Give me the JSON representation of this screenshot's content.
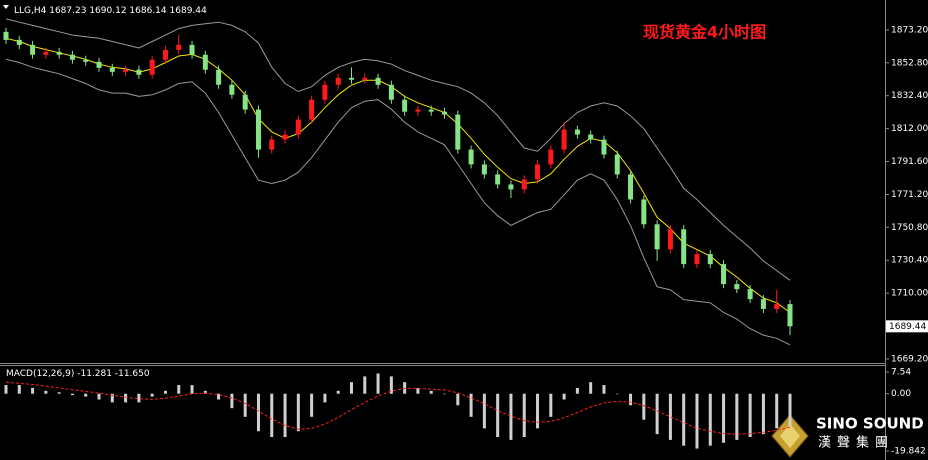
{
  "chart_data": [
    {
      "type": "candlestick",
      "symbol": "LLG,H4",
      "quote": [
        1687.23,
        1690.12,
        1686.14,
        1689.44
      ],
      "title": "现货黄金4小时图",
      "ylim": [
        1666.7,
        1890.5
      ],
      "yticks": [
        {
          "value": 1873.2,
          "label": "1873.20"
        },
        {
          "value": 1852.8,
          "label": "1852.80"
        },
        {
          "value": 1832.4,
          "label": "1832.40"
        },
        {
          "value": 1812,
          "label": "1812.00"
        },
        {
          "value": 1791.6,
          "label": "1791.60"
        },
        {
          "value": 1771.2,
          "label": "1771.20"
        },
        {
          "value": 1750.8,
          "label": "1750.80"
        },
        {
          "value": 1730.4,
          "label": "1730.40"
        },
        {
          "value": 1710,
          "label": "1710.00"
        },
        {
          "value": 1669.2,
          "label": "1669.20"
        }
      ],
      "current_price": 1689.44,
      "up_color": "#ff1a1a",
      "down_color": "#86e386",
      "open": [
        1872.0,
        1867.0,
        1863.9,
        1857.8,
        1859.6,
        1857.8,
        1854.7,
        1853.4,
        1849.7,
        1847.2,
        1848.5,
        1845.4,
        1854.7,
        1860.8,
        1863.9,
        1857.8,
        1848.5,
        1839.2,
        1833.0,
        1823.8,
        1799.0,
        1805.2,
        1808.3,
        1817.6,
        1829.9,
        1839.2,
        1843.5,
        1842.3,
        1843.5,
        1839.2,
        1829.9,
        1822.5,
        1823.8,
        1822.5,
        1820.7,
        1799.0,
        1789.8,
        1783.6,
        1777.4,
        1774.3,
        1780.5,
        1789.8,
        1799.0,
        1811.4,
        1808.3,
        1805.2,
        1795.9,
        1783.6,
        1768.1,
        1752.7,
        1737.2,
        1749.6,
        1728.0,
        1734.2,
        1728.0,
        1715.6,
        1712.5,
        1706.3,
        1700.2,
        1703.2
      ],
      "high": [
        1874.5,
        1869.5,
        1866.4,
        1862.1,
        1862.1,
        1860.3,
        1857.2,
        1855.9,
        1852.2,
        1851.0,
        1851.0,
        1857.2,
        1863.3,
        1870.0,
        1866.4,
        1860.3,
        1851.0,
        1841.7,
        1835.5,
        1826.3,
        1807.7,
        1810.8,
        1820.1,
        1832.4,
        1841.7,
        1846.0,
        1850.0,
        1846.0,
        1846.0,
        1841.7,
        1832.4,
        1826.3,
        1826.3,
        1825.0,
        1823.2,
        1801.5,
        1792.3,
        1786.1,
        1779.9,
        1783.0,
        1792.3,
        1801.5,
        1816.0,
        1813.9,
        1810.8,
        1807.7,
        1798.4,
        1786.1,
        1770.6,
        1755.2,
        1752.1,
        1752.1,
        1736.7,
        1736.7,
        1730.5,
        1718.1,
        1715.0,
        1708.8,
        1712.0,
        1705.7
      ],
      "low": [
        1864.5,
        1861.4,
        1855.3,
        1855.3,
        1855.3,
        1852.2,
        1850.9,
        1847.2,
        1844.7,
        1844.7,
        1842.9,
        1842.9,
        1852.2,
        1858.3,
        1855.3,
        1846.0,
        1836.7,
        1830.5,
        1821.3,
        1794.0,
        1796.5,
        1802.7,
        1805.8,
        1815.1,
        1827.4,
        1836.7,
        1839.8,
        1839.8,
        1836.7,
        1827.4,
        1820.0,
        1820.0,
        1820.0,
        1818.2,
        1796.5,
        1787.3,
        1781.1,
        1774.9,
        1769.0,
        1771.8,
        1778.0,
        1787.3,
        1796.5,
        1805.8,
        1802.7,
        1793.4,
        1781.1,
        1765.6,
        1750.2,
        1730.0,
        1734.7,
        1725.5,
        1725.5,
        1725.5,
        1713.1,
        1710.0,
        1703.8,
        1697.7,
        1697.7,
        1684.0
      ],
      "close": [
        1867.0,
        1863.9,
        1857.8,
        1859.6,
        1857.8,
        1854.7,
        1853.4,
        1849.7,
        1847.2,
        1848.5,
        1845.4,
        1854.7,
        1860.8,
        1863.9,
        1857.8,
        1848.5,
        1839.2,
        1833.0,
        1823.8,
        1799.0,
        1805.2,
        1808.3,
        1817.6,
        1829.9,
        1839.2,
        1843.5,
        1842.3,
        1843.5,
        1839.2,
        1829.9,
        1822.5,
        1823.8,
        1822.5,
        1820.7,
        1799.0,
        1789.8,
        1783.6,
        1777.4,
        1774.3,
        1780.5,
        1789.8,
        1799.0,
        1811.4,
        1808.3,
        1805.2,
        1795.9,
        1783.6,
        1768.1,
        1752.7,
        1737.2,
        1749.6,
        1728.0,
        1734.2,
        1728.0,
        1715.6,
        1712.5,
        1706.3,
        1700.2,
        1703.2,
        1689.44
      ],
      "series": [
        {
          "color": "#9a9a9a",
          "values": [
            1880,
            1878,
            1876,
            1874,
            1872,
            1870,
            1869,
            1868,
            1866,
            1864,
            1862,
            1866,
            1870,
            1874,
            1876,
            1877,
            1878,
            1876,
            1872,
            1865,
            1850,
            1840,
            1835,
            1838,
            1845,
            1850,
            1853,
            1855,
            1854,
            1852,
            1848,
            1845,
            1842,
            1840,
            1838,
            1834,
            1828,
            1820,
            1810,
            1800,
            1798,
            1806,
            1815,
            1822,
            1826,
            1828,
            1826,
            1820,
            1812,
            1800,
            1788,
            1775,
            1768,
            1760,
            1752,
            1745,
            1738,
            1730,
            1724,
            1718
          ]
        },
        {
          "color": "#9a9a9a",
          "values": [
            1855,
            1853,
            1850,
            1848,
            1846,
            1843,
            1840,
            1836,
            1834,
            1834,
            1832,
            1833,
            1836,
            1840,
            1841,
            1834,
            1822,
            1808,
            1794,
            1780,
            1778,
            1780,
            1785,
            1794,
            1805,
            1816,
            1825,
            1829,
            1830,
            1824,
            1816,
            1810,
            1806,
            1802,
            1790,
            1778,
            1766,
            1758,
            1752,
            1756,
            1760,
            1762,
            1771,
            1780,
            1784,
            1780,
            1768,
            1752,
            1732,
            1714,
            1712,
            1706,
            1705,
            1704,
            1698,
            1694,
            1688,
            1684,
            1682,
            1678
          ]
        },
        {
          "color": "#f2e600",
          "values": [
            1868,
            1866,
            1863,
            1861,
            1859,
            1857,
            1855,
            1852,
            1850,
            1849,
            1847,
            1849,
            1853,
            1857,
            1858,
            1855,
            1849,
            1842,
            1833,
            1818,
            1810,
            1806,
            1809,
            1816,
            1825,
            1833,
            1839,
            1842,
            1842,
            1838,
            1832,
            1828,
            1825,
            1822,
            1815,
            1806,
            1796,
            1788,
            1781,
            1778,
            1779,
            1784,
            1793,
            1801,
            1806,
            1804,
            1797,
            1786,
            1772,
            1757,
            1750,
            1741,
            1737,
            1733,
            1726,
            1720,
            1713,
            1707,
            1704,
            1698
          ]
        }
      ]
    },
    {
      "type": "macd",
      "label": "MACD(12,26,9)",
      "readings": [
        -11.281,
        {
          "value": -11.65,
          "label": "-11.650"
        }
      ],
      "ylim": [
        -19.842,
        9.6
      ],
      "yticks": [
        7.54,
        {
          "value": 0,
          "label": "0.00"
        },
        -19.842
      ],
      "histogram": {
        "color": "#d0d0d0",
        "values": [
          3,
          3,
          2,
          1,
          0.5,
          -0.5,
          -1,
          -2,
          -3,
          -3,
          -3,
          -1,
          1,
          3,
          3,
          1,
          -2,
          -5,
          -8,
          -13,
          -15,
          -15,
          -13,
          -8,
          -3,
          1,
          4,
          6,
          7,
          6,
          4,
          2,
          1,
          0,
          -4,
          -8,
          -12,
          -15,
          -16,
          -15,
          -12,
          -8,
          -2,
          2,
          4,
          3,
          0,
          -4,
          -9,
          -14,
          -16,
          -18,
          -19,
          -18,
          -17,
          -16,
          -15,
          -14,
          -12,
          -11.281
        ]
      },
      "signal": {
        "color": "#ff2020",
        "values": [
          4,
          3.6,
          3.2,
          2.6,
          2,
          1.4,
          0.8,
          0.2,
          -0.5,
          -1.2,
          -1.8,
          -1.9,
          -1.6,
          -0.8,
          0,
          0.2,
          -0.3,
          -1.5,
          -3.4,
          -6,
          -8.8,
          -11,
          -12.3,
          -12,
          -10.5,
          -8.2,
          -5.5,
          -3,
          -0.8,
          0.9,
          1.8,
          1.9,
          1.6,
          1.3,
          0.3,
          -1.4,
          -3.5,
          -5.8,
          -7.8,
          -9.3,
          -9.9,
          -9.6,
          -8.3,
          -6.5,
          -4.6,
          -3.2,
          -2.6,
          -2.9,
          -4.1,
          -6,
          -8,
          -10,
          -12,
          -13,
          -13.8,
          -14,
          -13.8,
          -13.4,
          -12.6,
          -11.65
        ]
      }
    }
  ],
  "logo": {
    "name": "SINO SOUND",
    "subtitle": "漢聲集團"
  }
}
